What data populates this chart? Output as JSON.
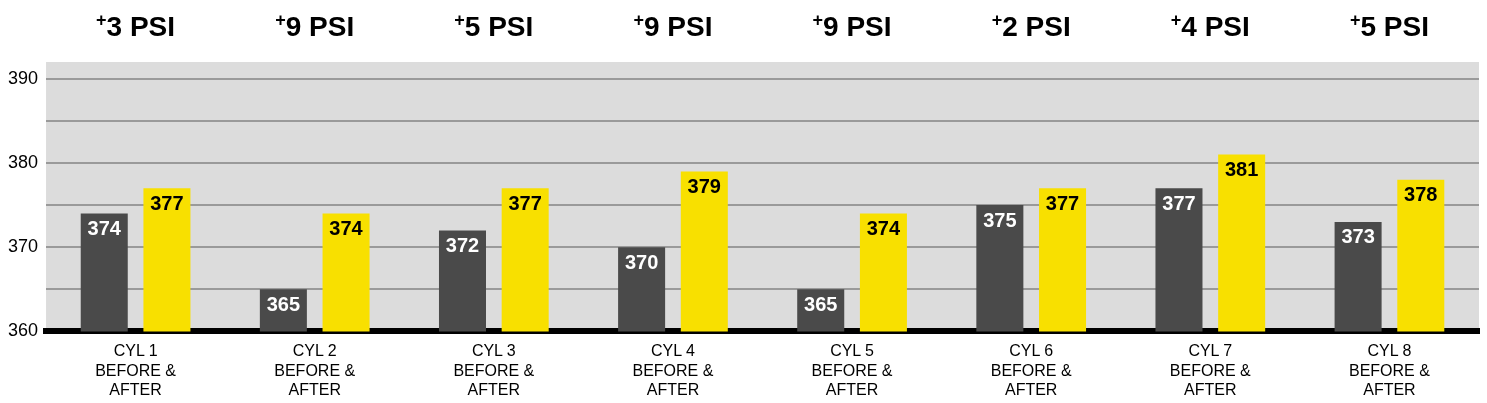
{
  "chart_data": {
    "type": "bar",
    "categories": [
      "CYL 1\nBEFORE &\nAFTER",
      "CYL 2\nBEFORE &\nAFTER",
      "CYL 3\nBEFORE &\nAFTER",
      "CYL 4\nBEFORE &\nAFTER",
      "CYL 5\nBEFORE &\nAFTER",
      "CYL 6\nBEFORE &\nAFTER",
      "CYL 7\nBEFORE &\nAFTER",
      "CYL 8\nBEFORE &\nAFTER"
    ],
    "series": [
      {
        "color": "#4a4a4a",
        "values": [
          374,
          365,
          372,
          370,
          365,
          375,
          377,
          373
        ]
      },
      {
        "color": "#f8e000",
        "values": [
          377,
          374,
          377,
          379,
          374,
          377,
          381,
          378
        ]
      }
    ],
    "ylim": [
      360,
      392
    ],
    "yticks": [
      360,
      {
        "value": 365,
        "label": null
      },
      370,
      {
        "value": 375,
        "label": null
      },
      380,
      {
        "value": 385,
        "label": null
      },
      390
    ],
    "grid": "y",
    "data_labels": true,
    "annotations": [
      "$^{+}$3 PSI",
      "$^{+}$9 PSI",
      "$^{+}$5 PSI",
      "$^{+}$9 PSI",
      "$^{+}$9 PSI",
      "$^{+}$2 PSI",
      "$^{+}$4 PSI",
      "$^{+}$5 PSI"
    ]
  }
}
